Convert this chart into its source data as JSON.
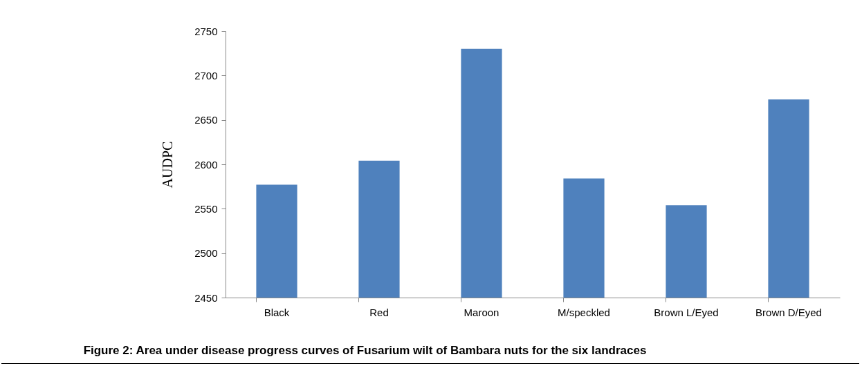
{
  "chart_data": {
    "type": "bar",
    "title": "Figure 2: Area under disease progress curves of Fusarium wilt of Bambara nuts for the six landraces",
    "ylabel": "AUDPC",
    "categories": [
      "Black",
      "Red",
      "Maroon",
      "M/speckled",
      "Brown L/Eyed",
      "Brown D/Eyed"
    ],
    "values": [
      2577,
      2604,
      2730,
      2584,
      2554,
      2673
    ],
    "color": "#4f81bd",
    "ylim": [
      2450,
      2750
    ],
    "yticks": [
      2450,
      2500,
      2550,
      2600,
      2650,
      2700,
      2750
    ],
    "grid": false
  }
}
